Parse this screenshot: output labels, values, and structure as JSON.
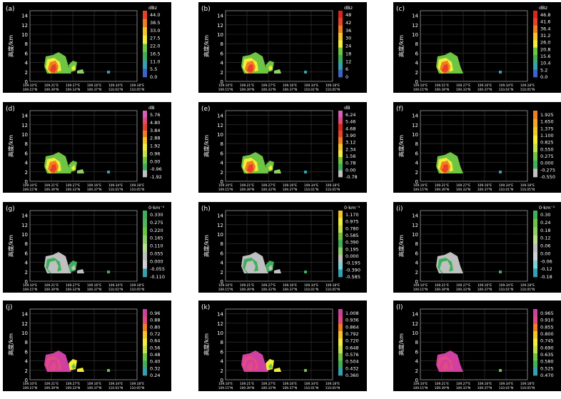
{
  "figure": {
    "ylabel": "高度/km",
    "yticks": [
      0,
      2,
      4,
      6,
      8,
      10,
      12,
      14
    ],
    "ylim": [
      0,
      15
    ],
    "xticks_top": [
      "109.10°E",
      "109.21°E",
      "109.27°E",
      "109.16°E",
      "109.34°E",
      "109.18°E"
    ],
    "xticks_bottom": [
      "109.15°N",
      "109.39°N",
      "109.33°N",
      "109.37°N",
      "110.01°N",
      "110.05°N"
    ]
  },
  "panels": [
    {
      "label": "(a)",
      "unit": "dBz",
      "colors": [
        "#e8402a",
        "#f07f20",
        "#f5c629",
        "#f2ee3a",
        "#6ec443",
        "#3fae5d",
        "#36a0b3",
        "#3b65c6"
      ],
      "ticks": [
        "44.0",
        "38.5",
        "33.0",
        "27.5",
        "22.0",
        "16.5",
        "11.0",
        "5.5",
        "0.0"
      ]
    },
    {
      "label": "(b)",
      "unit": "dBz",
      "colors": [
        "#d8281d",
        "#e8432a",
        "#f07f20",
        "#f5c629",
        "#f2ee3a",
        "#6ec443",
        "#3fae5d",
        "#36a0b3",
        "#3b65c6"
      ],
      "ticks": [
        "48",
        "42",
        "36",
        "30",
        "24",
        "18",
        "12",
        "6",
        "0"
      ]
    },
    {
      "label": "(c)",
      "unit": "dBz",
      "colors": [
        "#d8281d",
        "#e8432a",
        "#f07f20",
        "#f5c629",
        "#f2ee3a",
        "#6ec443",
        "#3fae5d",
        "#36a0b3",
        "#3b65c6"
      ],
      "ticks": [
        "46.8",
        "41.6",
        "36.4",
        "31.2",
        "26.0",
        "20.8",
        "15.6",
        "10.4",
        "5.2",
        "0.0"
      ]
    },
    {
      "label": "(d)",
      "unit": "dB",
      "colors": [
        "#d85fb8",
        "#e24a82",
        "#e8402a",
        "#f07f20",
        "#f5c629",
        "#f2ee3a",
        "#c8e04a",
        "#6ec443",
        "#3fae5d",
        "#c0c0c0"
      ],
      "ticks": [
        "5.76",
        "4.80",
        "3.84",
        "2.88",
        "1.92",
        "0.96",
        "0.00",
        "-0.96",
        "-1.92"
      ]
    },
    {
      "label": "(e)",
      "unit": "dB",
      "colors": [
        "#d85fb8",
        "#e24a82",
        "#d8281d",
        "#e8432a",
        "#f07f20",
        "#f5c629",
        "#f2ee3a",
        "#6ec443",
        "#3fae5d",
        "#c0c0c0"
      ],
      "ticks": [
        "6.24",
        "5.46",
        "4.68",
        "3.90",
        "3.12",
        "2.34",
        "1.56",
        "0.78",
        "0.00",
        "-0.78"
      ]
    },
    {
      "label": "(f)",
      "unit": "",
      "colors": [
        "#f07f20",
        "#f5a623",
        "#f5c629",
        "#f2ee3a",
        "#c8e04a",
        "#6ec443",
        "#3fae5d",
        "#c0c0c0"
      ],
      "ticks": [
        "1.925",
        "1.650",
        "1.375",
        "1.100",
        "0.825",
        "0.550",
        "0.275",
        "0.000",
        "-0.275",
        "-0.550"
      ]
    },
    {
      "label": "(g)",
      "unit": "0·km⁻¹",
      "colors": [
        "#3fae5d",
        "#4fb85a",
        "#6ec443",
        "#8fd06a",
        "#b8e08f",
        "#c0c0c0",
        "#d0d0d0",
        "#36a0b3"
      ],
      "ticks": [
        "0.330",
        "0.275",
        "0.220",
        "0.165",
        "0.110",
        "0.055",
        "0.000",
        "-0.055",
        "-0.110"
      ]
    },
    {
      "label": "(h)",
      "unit": "0·km⁻¹",
      "colors": [
        "#f5c629",
        "#f2ee3a",
        "#c8e04a",
        "#6ec443",
        "#3fae5d",
        "#8fd06a",
        "#c0c0c0",
        "#7ed1d6",
        "#36a0b3"
      ],
      "ticks": [
        "1.170",
        "0.975",
        "0.780",
        "0.585",
        "0.390",
        "0.195",
        "0.000",
        "-0.195",
        "-0.390",
        "-0.585"
      ]
    },
    {
      "label": "(i)",
      "unit": "0·km⁻¹",
      "colors": [
        "#3fae5d",
        "#6ec443",
        "#8fd06a",
        "#b8e08f",
        "#c0c0c0",
        "#d0d0d0",
        "#7ed1d6",
        "#36a0b3"
      ],
      "ticks": [
        "0.30",
        "0.24",
        "0.18",
        "0.12",
        "0.06",
        "0.00",
        "-0.06",
        "-0.12",
        "-0.18"
      ]
    },
    {
      "label": "(j)",
      "unit": "",
      "colors": [
        "#d040a0",
        "#e24a82",
        "#f07f20",
        "#f5c629",
        "#f2ee3a",
        "#c8e04a",
        "#6ec443",
        "#3fae5d",
        "#36a0b3"
      ],
      "ticks": [
        "0.96",
        "0.88",
        "0.80",
        "0.72",
        "0.64",
        "0.56",
        "0.48",
        "0.40",
        "0.32",
        "0.24"
      ]
    },
    {
      "label": "(k)",
      "unit": "",
      "colors": [
        "#d040a0",
        "#e24a82",
        "#f07f20",
        "#f5c629",
        "#f2ee3a",
        "#c8e04a",
        "#6ec443",
        "#3fae5d",
        "#36a0b3"
      ],
      "ticks": [
        "1.008",
        "0.936",
        "0.864",
        "0.792",
        "0.720",
        "0.648",
        "0.576",
        "0.504",
        "0.432",
        "0.360"
      ]
    },
    {
      "label": "(l)",
      "unit": "",
      "colors": [
        "#d040a0",
        "#e24a82",
        "#f07f20",
        "#f5c629",
        "#f2ee3a",
        "#c8e04a",
        "#6ec443",
        "#3fae5d",
        "#36a0b3"
      ],
      "ticks": [
        "0.965",
        "0.910",
        "0.855",
        "0.800",
        "0.745",
        "0.690",
        "0.635",
        "0.580",
        "0.525",
        "0.470"
      ]
    }
  ]
}
